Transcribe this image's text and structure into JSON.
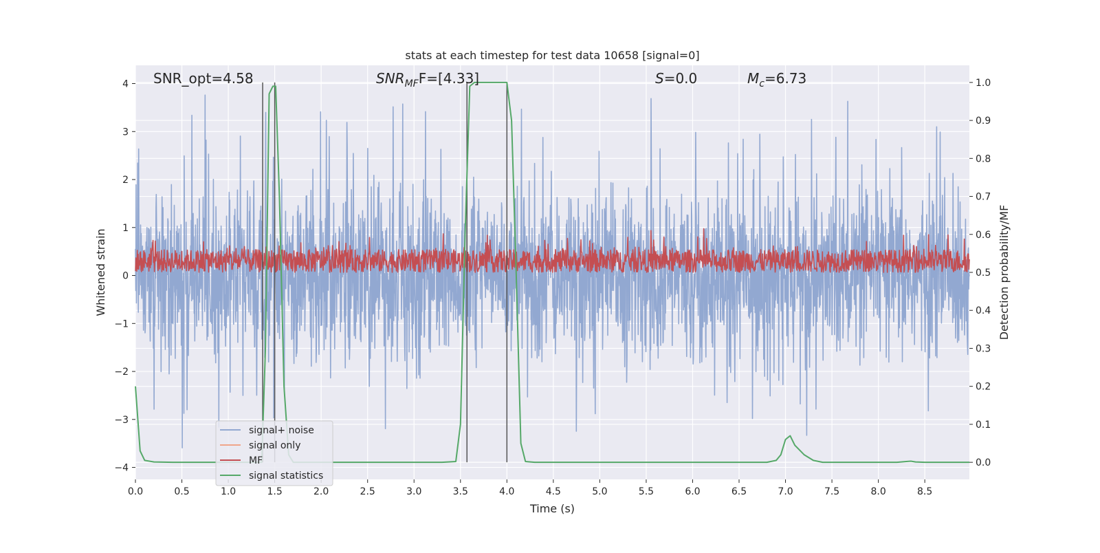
{
  "chart_data": {
    "type": "line",
    "title": "stats at each timestep for test data 10658 [signal=0]",
    "xlabel": "Time (s)",
    "ylabel_left": "Whitened strain",
    "ylabel_right": "Detection probability/MF",
    "xlim": [
      0.0,
      8.98
    ],
    "ylim_left": [
      -4.25,
      4.38
    ],
    "ylim_right": [
      -0.045,
      1.045
    ],
    "x_ticks": [
      "0.0",
      "0.5",
      "1.0",
      "1.5",
      "2.0",
      "2.5",
      "3.0",
      "3.5",
      "4.0",
      "4.5",
      "5.0",
      "5.5",
      "6.0",
      "6.5",
      "7.0",
      "7.5",
      "8.0",
      "8.5"
    ],
    "y_ticks_left": [
      "4",
      "3",
      "2",
      "1",
      "0",
      "−1",
      "−2",
      "−3",
      "−4"
    ],
    "y_ticks_right": [
      "1.0",
      "0.9",
      "0.8",
      "0.7",
      "0.6",
      "0.5",
      "0.4",
      "0.3",
      "0.2",
      "0.1",
      "0.0"
    ],
    "grid": true,
    "legend_position": "lower-left",
    "annotations": {
      "snr_opt": "SNR_opt=4.58",
      "snr_mf_main": "SNR",
      "snr_mf_sub": "MF",
      "snr_mf_value": "F=[4.33]",
      "s_var": "S",
      "s_value": "=0.0",
      "mc_var": "M",
      "mc_sub": "c",
      "mc_value": "=6.73"
    },
    "series": [
      {
        "name": "signal+ noise",
        "color": "#92a8d1",
        "axis": "left",
        "description": "whitened strain noise, roughly within -2.5..2.5 with spikes",
        "envelope": {
          "typical_low": -1.5,
          "typical_high": 1.6,
          "spike_max": 4.0,
          "spike_min": -3.9
        }
      },
      {
        "name": "signal only",
        "color": "#f0a58a",
        "axis": "left",
        "values": "zero (not visible)"
      },
      {
        "name": "MF",
        "color": "#c44e52",
        "axis": "right",
        "description": "matched filter output, approx 0.50..0.62 on right axis",
        "range": [
          0.5,
          0.62
        ]
      },
      {
        "name": "signal statistics",
        "color": "#55a868",
        "axis": "right",
        "x": [
          0.0,
          0.05,
          0.1,
          0.2,
          0.4,
          0.6,
          0.8,
          1.0,
          1.2,
          1.3,
          1.36,
          1.4,
          1.44,
          1.48,
          1.51,
          1.55,
          1.6,
          1.65,
          1.7,
          2.0,
          2.5,
          3.0,
          3.3,
          3.45,
          3.5,
          3.55,
          3.6,
          3.65,
          3.7,
          3.8,
          4.0,
          4.05,
          4.1,
          4.15,
          4.2,
          4.3,
          5.0,
          6.0,
          6.8,
          6.9,
          6.95,
          7.0,
          7.05,
          7.1,
          7.2,
          7.3,
          7.4,
          7.5,
          8.0,
          8.2,
          8.3,
          8.35,
          8.4,
          8.5,
          8.98
        ],
        "y": [
          0.2,
          0.03,
          0.005,
          0.001,
          0.0,
          0.0,
          0.0,
          0.0,
          0.0,
          0.0,
          0.0,
          0.3,
          0.97,
          0.99,
          0.99,
          0.7,
          0.2,
          0.02,
          0.0,
          0.0,
          0.0,
          0.0,
          0.0,
          0.002,
          0.1,
          0.6,
          0.99,
          1.0,
          1.0,
          1.0,
          1.0,
          0.9,
          0.5,
          0.05,
          0.002,
          0.0,
          0.0,
          0.0,
          0.0,
          0.005,
          0.02,
          0.06,
          0.07,
          0.045,
          0.02,
          0.005,
          0.0,
          0.0,
          0.0,
          0.0,
          0.002,
          0.003,
          0.001,
          0.0,
          0.0
        ]
      }
    ],
    "vertical_lines": [
      {
        "x": 1.37,
        "color": "#555555",
        "axis_range_right": [
          0.0,
          1.0
        ]
      },
      {
        "x": 1.5,
        "color": "#555555",
        "axis_range_right": [
          0.0,
          1.0
        ]
      },
      {
        "x": 3.57,
        "color": "#555555",
        "axis_range_right": [
          0.0,
          1.0
        ]
      },
      {
        "x": 4.0,
        "color": "#555555",
        "axis_range_right": [
          0.0,
          1.0
        ]
      }
    ]
  }
}
